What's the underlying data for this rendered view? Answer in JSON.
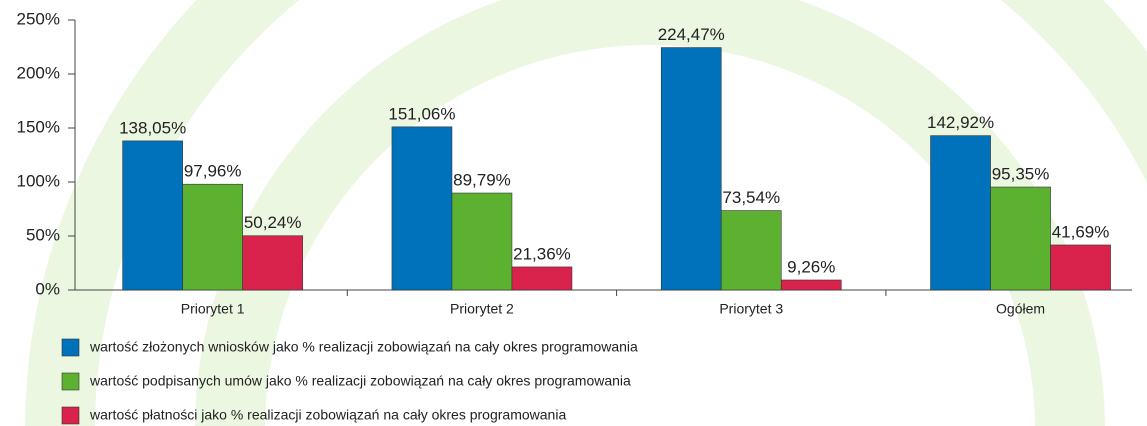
{
  "chart_data": {
    "type": "bar",
    "categories": [
      "Priorytet 1",
      "Priorytet 2",
      "Priorytet 3",
      "Ogółem"
    ],
    "series": [
      {
        "name": "wartość złożonych wniosków jako % realizacji zobowiązań na cały okres programowania",
        "color": "#0072bc",
        "values": [
          138.05,
          151.06,
          224.47,
          142.92
        ],
        "value_labels": [
          "138,05%",
          "151,06%",
          "224,47%",
          "142,92%"
        ]
      },
      {
        "name": "wartość podpisanych umów jako % realizacji zobowiązań na cały okres programowania",
        "color": "#5db130",
        "values": [
          97.96,
          89.79,
          73.54,
          95.35
        ],
        "value_labels": [
          "97,96%",
          "89,79%",
          "73,54%",
          "95,35%"
        ]
      },
      {
        "name": "wartość płatności jako % realizacji zobowiązań na cały okres programowania",
        "color": "#d9224c",
        "values": [
          50.24,
          21.36,
          9.26,
          41.69
        ],
        "value_labels": [
          "50,24%",
          "21,36%",
          "9,26%",
          "41,69%"
        ]
      }
    ],
    "ylim": [
      0,
      250
    ],
    "yticks": [
      {
        "value": 0,
        "label": "0%"
      },
      {
        "value": 50,
        "label": "50%"
      },
      {
        "value": 100,
        "label": "100%"
      },
      {
        "value": 150,
        "label": "150%"
      },
      {
        "value": 200,
        "label": "200%"
      },
      {
        "value": 250,
        "label": "250%"
      }
    ],
    "legend": "bottom-left"
  }
}
